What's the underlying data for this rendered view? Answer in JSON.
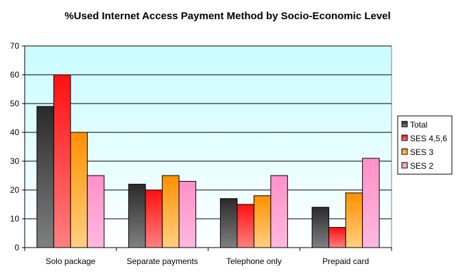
{
  "chart_data": {
    "type": "bar",
    "title": "%Used Internet Access Payment Method by Socio-Economic Level",
    "xlabel": "",
    "ylabel": "",
    "ylim": [
      0,
      70
    ],
    "yticks": [
      "0",
      "10",
      "20",
      "30",
      "40",
      "50",
      "60",
      "70"
    ],
    "grid": true,
    "legend_position": "right",
    "categories": [
      "Solo package",
      "Separate payments",
      "Telephone only",
      "Prepaid card"
    ],
    "series": [
      {
        "name": "Total",
        "values": [
          49,
          22,
          17,
          14
        ],
        "color_top": "#2a2a2a",
        "color_bottom": "#808080"
      },
      {
        "name": "SES 4,5,6",
        "values": [
          60,
          20,
          15,
          7
        ],
        "color_top": "#ff1010",
        "color_bottom": "#ff8080"
      },
      {
        "name": "SES 3",
        "values": [
          40,
          25,
          18,
          19
        ],
        "color_top": "#ff9000",
        "color_bottom": "#ffd080"
      },
      {
        "name": "SES 2",
        "values": [
          25,
          23,
          25,
          31
        ],
        "color_top": "#ff90c8",
        "color_bottom": "#ffb8e0"
      }
    ]
  }
}
